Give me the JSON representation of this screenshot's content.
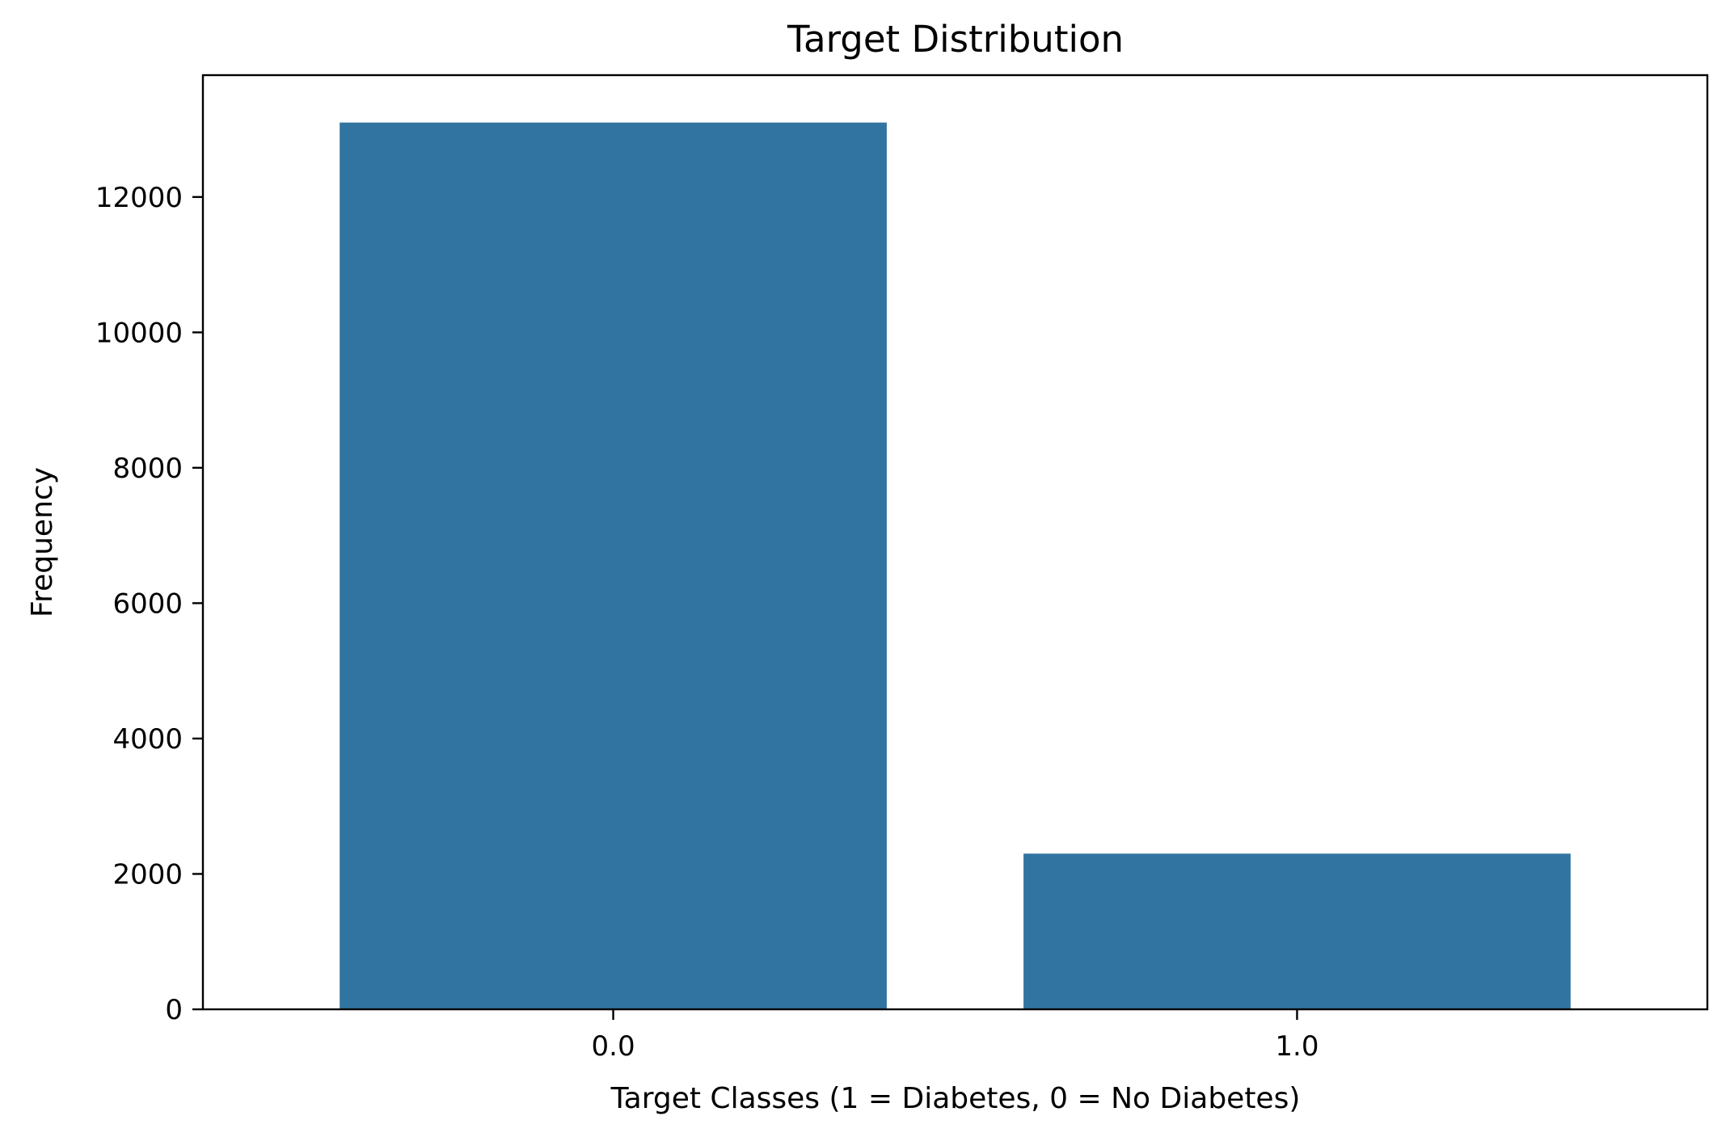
{
  "chart_data": {
    "type": "bar",
    "title": "Target Distribution",
    "xlabel": "Target Classes (1 = Diabetes, 0 = No Diabetes)",
    "ylabel": "Frequency",
    "categories": [
      "0.0",
      "1.0"
    ],
    "values": [
      13100,
      2300
    ],
    "ylim": [
      0,
      13800
    ],
    "yticks": [
      0,
      2000,
      4000,
      6000,
      8000,
      10000,
      12000
    ],
    "ytick_labels": [
      "0",
      "2000",
      "4000",
      "6000",
      "8000",
      "10000",
      "12000"
    ],
    "grid": false,
    "legend": "none",
    "bar_color": "#3274a1"
  }
}
